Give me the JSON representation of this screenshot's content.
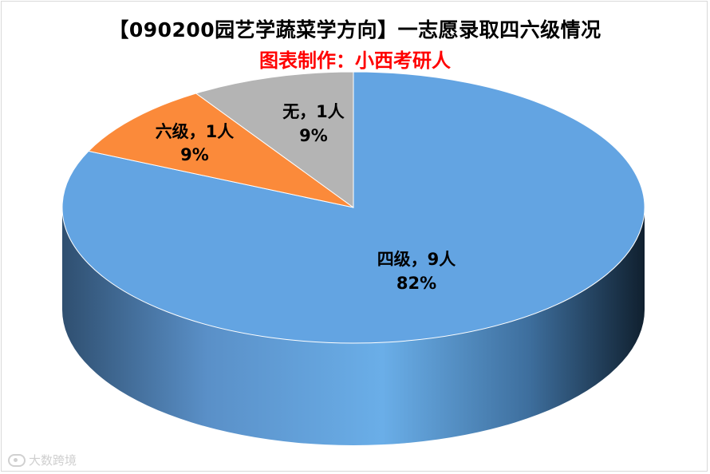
{
  "chart_data": {
    "type": "pie",
    "title": "【090200园艺学蔬菜学方向】一志愿录取四六级情况",
    "subtitle": "图表制作：小西考研人",
    "slices": [
      {
        "name": "四级",
        "count": "9人",
        "value": 9,
        "percent": "82%",
        "color": "#63a4e2"
      },
      {
        "name": "六级",
        "count": "1人",
        "value": 1,
        "percent": "9%",
        "color": "#fb8a3a"
      },
      {
        "name": "无",
        "count": "1人",
        "value": 1,
        "percent": "9%",
        "color": "#b4b4b4"
      }
    ],
    "style": "3d"
  },
  "labels": {
    "s0_line1": "四级，9人",
    "s0_line2": "82%",
    "s1_line1": "六级，1人",
    "s1_line2": "9%",
    "s2_line1": "无，1人",
    "s2_line2": "9%"
  },
  "watermark": {
    "text": "大数跨境"
  }
}
